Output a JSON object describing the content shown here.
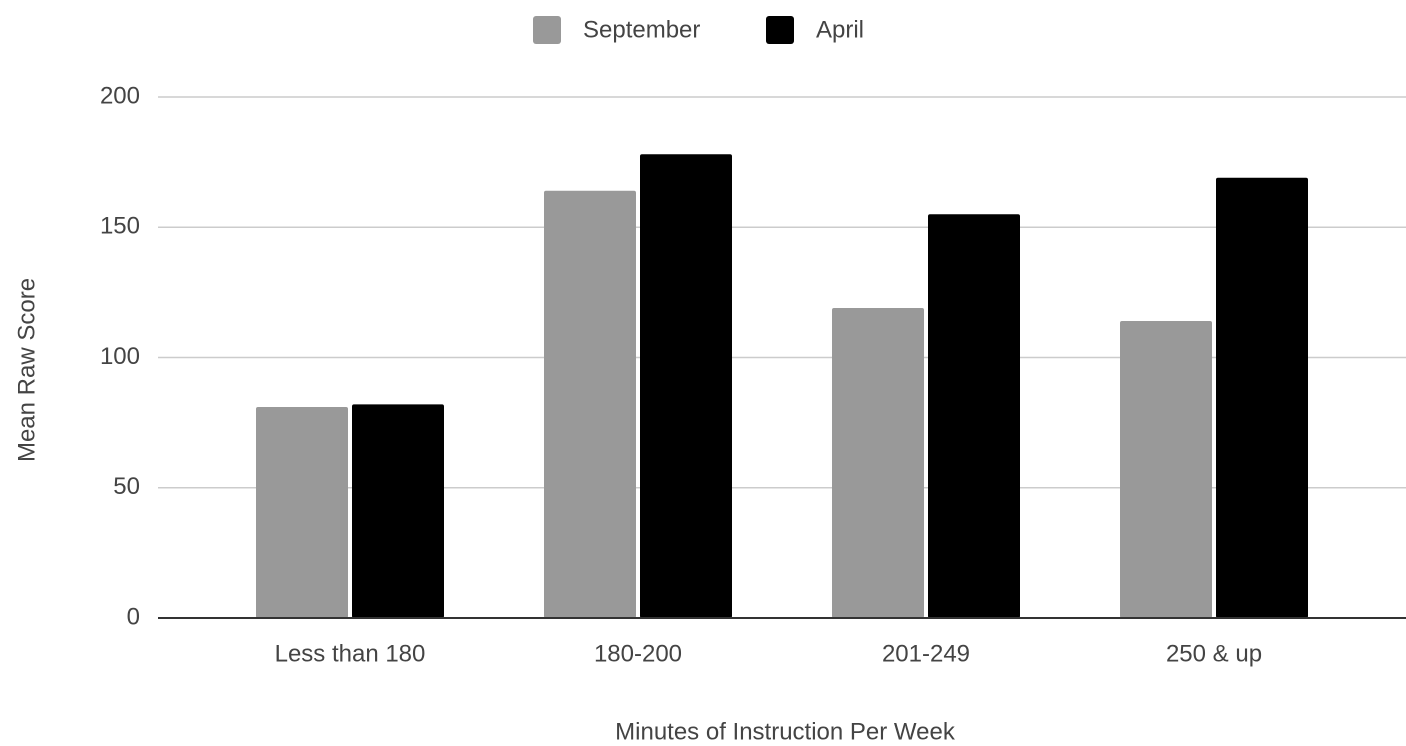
{
  "chart_data": {
    "type": "bar",
    "categories": [
      "Less than 180",
      "180-200",
      "201-249",
      "250 & up"
    ],
    "series": [
      {
        "name": "September",
        "color": "#999999",
        "values": [
          81,
          164,
          119,
          114
        ]
      },
      {
        "name": "April",
        "color": "#000000",
        "values": [
          82,
          178,
          155,
          169
        ]
      }
    ],
    "x_label": "Minutes of Instruction Per Week",
    "y_label": "Mean Raw Score",
    "ylim": [
      0,
      200
    ],
    "yticks": [
      0,
      50,
      100,
      150,
      200
    ],
    "grid": true,
    "legend": "top"
  }
}
